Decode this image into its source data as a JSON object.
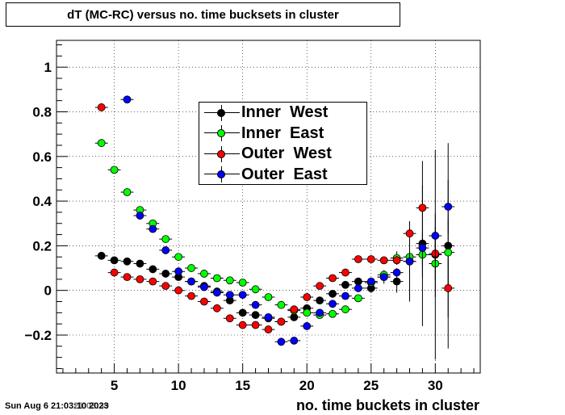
{
  "title": "dT (MC-RC) versus no. time bucksets in cluster",
  "timestamp": "Sun Aug  6 21:03:10 2023",
  "timestamp_overlay": "21:03:39",
  "colors": {
    "inner_west": "#000000",
    "inner_east": "#00ff00",
    "outer_west": "#ff0000",
    "outer_east": "#0000ff"
  },
  "chart_data": {
    "type": "scatter",
    "title": "dT (MC-RC) versus no. time bucksets in cluster",
    "xlabel": "no. time buckets in cluster",
    "ylabel": "",
    "xlim": [
      0.5,
      33.5
    ],
    "ylim": [
      -0.37,
      1.12
    ],
    "grid": true,
    "legend_position": "top-center",
    "x_ticks": [
      5,
      10,
      15,
      20,
      25,
      30
    ],
    "y_ticks": [
      -0.2,
      0,
      0.2,
      0.4,
      0.6,
      0.8,
      1
    ],
    "x_tick_labels": [
      "5",
      "10",
      "15",
      "20",
      "25",
      "30"
    ],
    "y_tick_labels": [
      "−0.2",
      "0",
      "0.2",
      "0.4",
      "0.6",
      "0.8",
      "1"
    ],
    "series": [
      {
        "name": "Inner  West",
        "color": "#000000",
        "x": [
          4,
          5,
          6,
          7,
          8,
          9,
          10,
          11,
          12,
          13,
          14,
          15,
          16,
          17,
          18,
          19,
          20,
          21,
          22,
          23,
          24,
          25,
          26,
          27,
          28,
          29,
          30,
          31
        ],
        "y": [
          0.155,
          0.135,
          0.13,
          0.12,
          0.095,
          0.075,
          0.06,
          0.04,
          0.02,
          -0.005,
          -0.045,
          -0.1,
          -0.11,
          -0.125,
          -0.14,
          -0.12,
          -0.08,
          -0.045,
          -0.015,
          0.025,
          0.04,
          0.01,
          0.06,
          0.04,
          0.13,
          0.21,
          0.16,
          0.2
        ],
        "yerr": [
          0.004,
          0.004,
          0.004,
          0.004,
          0.004,
          0.004,
          0.004,
          0.004,
          0.004,
          0.004,
          0.005,
          0.005,
          0.005,
          0.006,
          0.006,
          0.006,
          0.007,
          0.007,
          0.008,
          0.01,
          0.012,
          0.02,
          0.03,
          0.05,
          0.18,
          0.37,
          0.47,
          0.46
        ]
      },
      {
        "name": "Inner  East",
        "color": "#00ff00",
        "x": [
          4,
          5,
          6,
          7,
          8,
          9,
          10,
          11,
          12,
          13,
          14,
          15,
          16,
          17,
          18,
          19,
          20,
          21,
          22,
          23,
          24,
          25,
          26,
          27,
          28,
          29,
          30,
          31
        ],
        "y": [
          0.66,
          0.54,
          0.44,
          0.36,
          0.3,
          0.23,
          0.15,
          0.1,
          0.075,
          0.055,
          0.045,
          0.035,
          0.005,
          -0.03,
          -0.065,
          -0.09,
          -0.1,
          -0.11,
          -0.105,
          -0.085,
          -0.035,
          0.035,
          0.07,
          0.145,
          0.15,
          0.16,
          0.12,
          0.17
        ],
        "yerr": [
          0.004,
          0.004,
          0.004,
          0.004,
          0.004,
          0.004,
          0.004,
          0.004,
          0.004,
          0.004,
          0.004,
          0.004,
          0.005,
          0.005,
          0.006,
          0.006,
          0.007,
          0.007,
          0.008,
          0.009,
          0.01,
          0.015,
          0.02,
          0.03,
          0.05,
          0.1,
          0.15,
          0.15
        ]
      },
      {
        "name": "Outer  West",
        "color": "#ff0000",
        "x": [
          4,
          5,
          6,
          7,
          8,
          9,
          10,
          11,
          12,
          13,
          14,
          15,
          16,
          17,
          18,
          19,
          20,
          21,
          22,
          23,
          24,
          25,
          26,
          27,
          28,
          29,
          30,
          31
        ],
        "y": [
          0.82,
          0.08,
          0.06,
          0.05,
          0.04,
          0.02,
          0.0,
          -0.025,
          -0.05,
          -0.08,
          -0.125,
          -0.155,
          -0.155,
          -0.175,
          -0.14,
          -0.085,
          -0.03,
          0.02,
          0.055,
          0.08,
          0.14,
          0.14,
          0.135,
          0.135,
          0.255,
          0.37,
          0.165,
          0.01
        ],
        "yerr": [
          0.004,
          0.004,
          0.004,
          0.004,
          0.004,
          0.004,
          0.004,
          0.004,
          0.004,
          0.004,
          0.004,
          0.005,
          0.005,
          0.006,
          0.006,
          0.006,
          0.007,
          0.007,
          0.008,
          0.009,
          0.01,
          0.012,
          0.015,
          0.02,
          0.05,
          0.1,
          0.12,
          0.13
        ]
      },
      {
        "name": "Outer  East",
        "color": "#0000ff",
        "x": [
          6,
          7,
          8,
          9,
          10,
          11,
          12,
          13,
          14,
          15,
          16,
          17,
          18,
          19,
          20,
          21,
          22,
          23,
          24,
          25,
          26,
          27,
          28,
          29,
          30,
          31
        ],
        "y": [
          0.855,
          0.335,
          0.275,
          0.18,
          0.085,
          0.04,
          0.015,
          -0.01,
          -0.02,
          -0.02,
          -0.065,
          -0.12,
          -0.23,
          -0.225,
          -0.16,
          -0.1,
          -0.06,
          -0.025,
          0.01,
          0.04,
          0.06,
          0.08,
          0.13,
          0.19,
          0.245,
          0.375
        ],
        "yerr": [
          0.004,
          0.004,
          0.004,
          0.004,
          0.004,
          0.004,
          0.004,
          0.004,
          0.004,
          0.005,
          0.005,
          0.006,
          0.006,
          0.007,
          0.007,
          0.008,
          0.008,
          0.009,
          0.01,
          0.012,
          0.015,
          0.02,
          0.04,
          0.08,
          0.1,
          0.12
        ]
      }
    ]
  }
}
